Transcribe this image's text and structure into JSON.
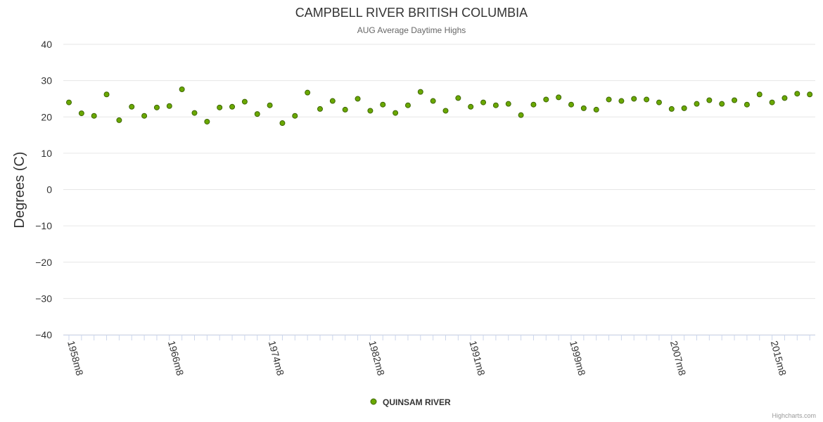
{
  "chart_data": {
    "type": "scatter",
    "title": "CAMPBELL RIVER BRITISH COLUMBIA",
    "subtitle": "AUG Average Daytime Highs",
    "xlabel": "",
    "ylabel": "Degrees (C)",
    "ylim": [
      -40,
      40
    ],
    "yticks": [
      "40",
      "30",
      "20",
      "10",
      "0",
      "−10",
      "−20",
      "−30",
      "−40"
    ],
    "xtick_labels": [
      "1958m8",
      "1966m8",
      "1974m8",
      "1982m8",
      "1991m8",
      "1999m8",
      "2007m8",
      "2015m8"
    ],
    "grid": true,
    "legend": "bottom-center",
    "series": [
      {
        "name": "QUINSAM RIVER",
        "color": "#6aa800",
        "values": [
          24,
          21,
          20.3,
          26.2,
          19.1,
          22.8,
          20.3,
          22.6,
          23,
          27.6,
          21.1,
          18.7,
          22.6,
          22.8,
          24.2,
          20.8,
          23.2,
          18.3,
          20.3,
          26.7,
          22.2,
          24.4,
          22,
          25,
          21.7,
          23.4,
          21.1,
          23.2,
          26.9,
          24.4,
          21.7,
          25.2,
          22.8,
          24,
          23.2,
          23.6,
          20.5,
          23.4,
          24.8,
          25.4,
          23.4,
          22.4,
          22,
          24.8,
          24.4,
          25,
          24.8,
          24,
          22.2,
          22.4,
          23.6,
          24.6,
          23.6,
          24.6,
          23.4,
          26.2,
          24,
          25.2,
          26.4,
          26.2
        ]
      }
    ]
  },
  "credits": "Highcharts.com"
}
